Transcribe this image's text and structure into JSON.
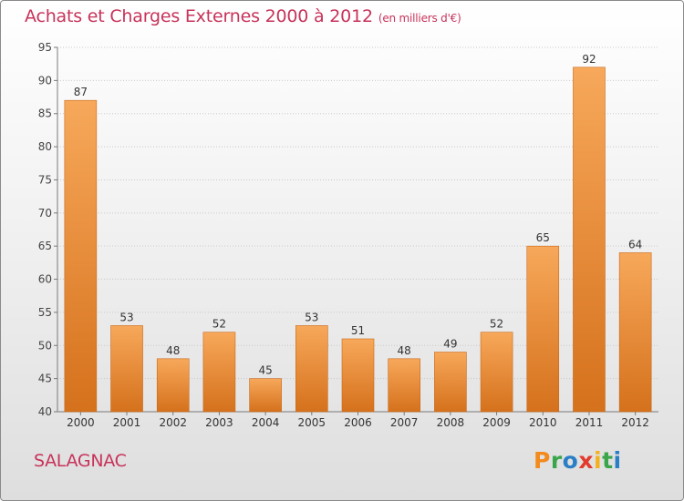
{
  "chart_data": {
    "type": "bar",
    "title": "Achats et Charges Externes 2000 à 2012",
    "subtitle": "(en milliers d'€)",
    "categories": [
      "2000",
      "2001",
      "2002",
      "2003",
      "2004",
      "2005",
      "2006",
      "2007",
      "2008",
      "2009",
      "2010",
      "2011",
      "2012"
    ],
    "values": [
      87,
      53,
      48,
      52,
      45,
      53,
      51,
      48,
      49,
      52,
      65,
      92,
      64
    ],
    "ylim": [
      40,
      95
    ],
    "yticks": [
      40,
      45,
      50,
      55,
      60,
      65,
      70,
      75,
      80,
      85,
      90,
      95
    ],
    "xlabel": "",
    "ylabel": "",
    "grid": true,
    "bar_color": "#f0943c",
    "bar_color_light": "#f7a85a",
    "bar_color_dark": "#d5711c"
  },
  "footer": {
    "commune": "SALAGNAC",
    "logo_text": "Proxiti",
    "logo_colors": [
      "#f28a1e",
      "#3aa54a",
      "#2a7ec6",
      "#e23b2e",
      "#f2b21e",
      "#3aa54a",
      "#2a7ec6"
    ]
  },
  "colors": {
    "accent": "#c8335b",
    "grid": "#c9c9c9",
    "axis": "#7a7a7a"
  }
}
